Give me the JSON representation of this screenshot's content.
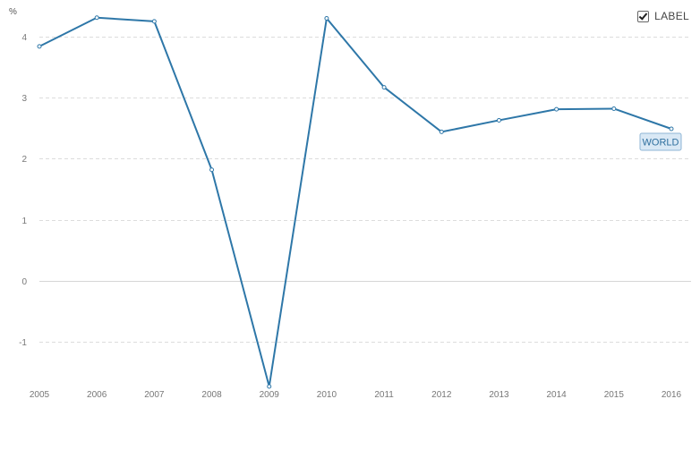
{
  "controls": {
    "label_toggle": "LABEL",
    "label_checked": true
  },
  "chart_data": {
    "type": "line",
    "title": "",
    "xlabel": "",
    "ylabel": "%",
    "x": [
      "2005",
      "2006",
      "2007",
      "2008",
      "2009",
      "2010",
      "2011",
      "2012",
      "2013",
      "2014",
      "2015",
      "2016"
    ],
    "series": [
      {
        "name": "WORLD",
        "values": [
          3.84,
          4.31,
          4.25,
          1.82,
          -1.73,
          4.3,
          3.17,
          2.44,
          2.63,
          2.81,
          2.82,
          2.49
        ]
      }
    ],
    "yticks": [
      4,
      3,
      2,
      1,
      0,
      -1
    ],
    "ylim": [
      -1.73,
      4.6
    ],
    "grid": true,
    "colors": {
      "series": "#2e77a8",
      "tag_fill": "#d9e8f5"
    }
  }
}
